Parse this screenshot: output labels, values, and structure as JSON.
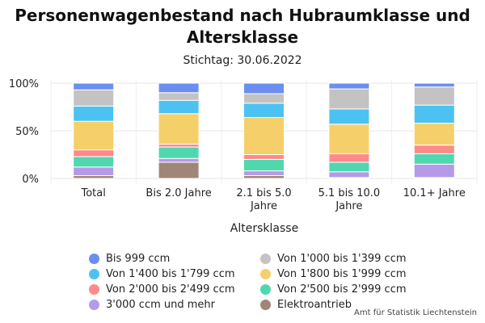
{
  "chart_data": {
    "type": "bar",
    "stacked": true,
    "normalized": true,
    "title": "Personenwagenbestand nach Hubraumklasse und Altersklasse",
    "subtitle": "Stichtag: 30.06.2022",
    "xlabel": "Altersklasse",
    "ylabel": "",
    "ylim": [
      0,
      100
    ],
    "yticks": [
      "0%",
      "50%",
      "100%"
    ],
    "grid": true,
    "legend_position": "bottom",
    "categories": [
      "Total",
      "Bis 2.0 Jahre",
      "2.1 bis 5.0 Jahre",
      "5.1 bis 10.0 Jahre",
      "10.1+ Jahre"
    ],
    "category_labels": [
      [
        "Total"
      ],
      [
        "Bis 2.0 Jahre"
      ],
      [
        "2.1 bis 5.0",
        "Jahre"
      ],
      [
        "5.1 bis 10.0",
        "Jahre"
      ],
      [
        "10.1+ Jahre"
      ]
    ],
    "series": [
      {
        "name": "Elektroantrieb",
        "color": "#a08679",
        "values": [
          3,
          17,
          3,
          1,
          1
        ]
      },
      {
        "name": "3'000 ccm und mehr",
        "color": "#b49ae8",
        "values": [
          9,
          4,
          5,
          6,
          14
        ]
      },
      {
        "name": "Von 2'500 bis 2'999 ccm",
        "color": "#4fd8b0",
        "values": [
          11,
          12,
          12,
          10,
          11
        ]
      },
      {
        "name": "Von 2'000 bis 2'499 ccm",
        "color": "#ff8a8a",
        "values": [
          7,
          3,
          5,
          9,
          9
        ]
      },
      {
        "name": "Von 1'800 bis 1'999 ccm",
        "color": "#f5d06a",
        "values": [
          30,
          32,
          39,
          31,
          23
        ]
      },
      {
        "name": "Von 1'400 bis 1'799 ccm",
        "color": "#4cc2f2",
        "values": [
          16,
          14,
          15,
          16,
          19
        ]
      },
      {
        "name": "Von 1'000 bis 1'399 ccm",
        "color": "#c3c3c3",
        "values": [
          17,
          8,
          10,
          21,
          19
        ]
      },
      {
        "name": "Bis 999 ccm",
        "color": "#6c8ef0",
        "values": [
          7,
          10,
          11,
          6,
          4
        ]
      }
    ],
    "legend_order": [
      "Bis 999 ccm",
      "Von 1'000 bis 1'399 ccm",
      "Von 1'400 bis 1'799 ccm",
      "Von 1'800 bis 1'999 ccm",
      "Von 2'000 bis 2'499 ccm",
      "Von 2'500 bis 2'999 ccm",
      "3'000 ccm und mehr",
      "Elektroantrieb"
    ]
  },
  "source": "Amt für Statistik Liechtenstein"
}
